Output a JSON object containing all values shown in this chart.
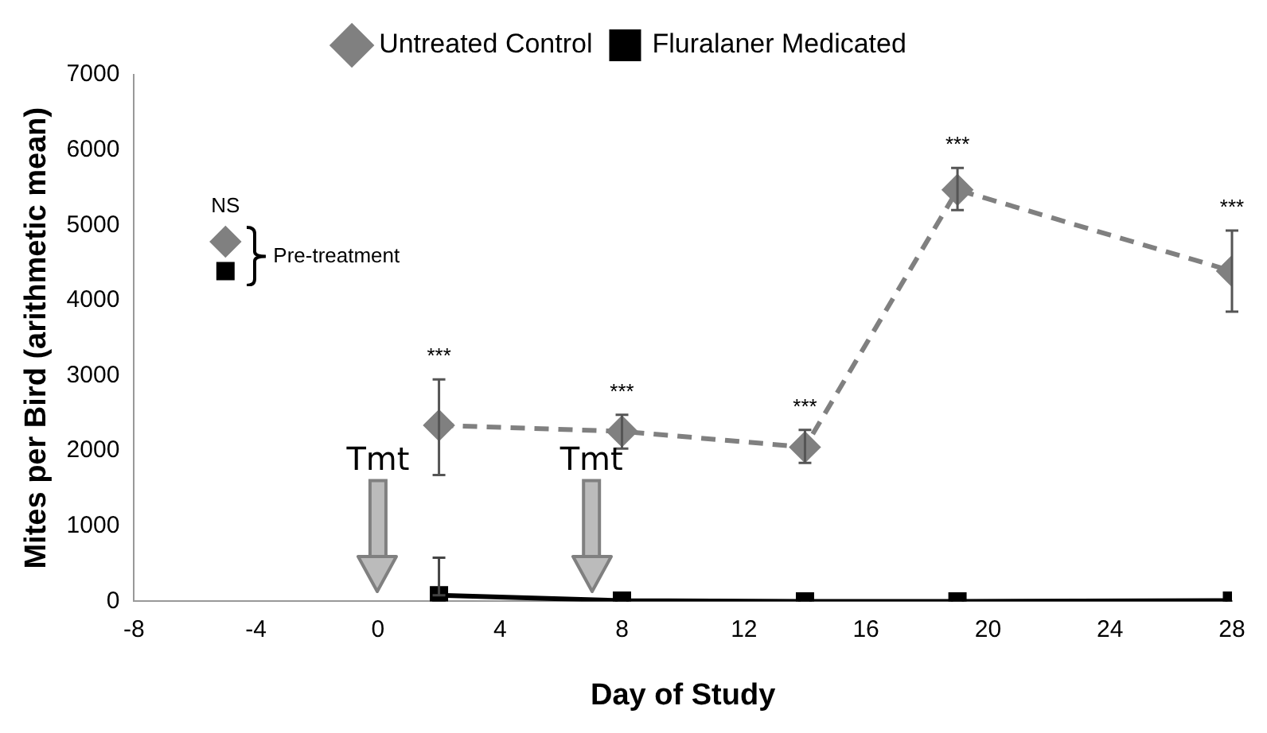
{
  "chart_data": {
    "type": "line",
    "xlabel": "Day of Study",
    "ylabel": "Mites per Bird (arithmetic mean)",
    "xlim": [
      -8,
      28
    ],
    "xticks": [
      -8,
      -4,
      0,
      4,
      8,
      12,
      16,
      20,
      24,
      28
    ],
    "ylim": [
      0,
      7000
    ],
    "yticks": [
      0,
      1000,
      2000,
      3000,
      4000,
      5000,
      6000,
      7000
    ],
    "grid": false,
    "legend": "top",
    "series": [
      {
        "name": "Untreated Control",
        "color": "#808080",
        "marker": "diamond",
        "line_style": "dashed",
        "x": [
          2,
          8,
          14,
          19,
          28
        ],
        "values": [
          2340,
          2260,
          2050,
          5470,
          4390
        ],
        "errors": [
          [
            1680,
            2950
          ],
          [
            2030,
            2480
          ],
          [
            1840,
            2280
          ],
          [
            5200,
            5760
          ],
          [
            3850,
            4930
          ]
        ]
      },
      {
        "name": "Fluralaner Medicated",
        "color": "#000000",
        "marker": "square",
        "line_style": "solid",
        "x": [
          2,
          8,
          14,
          19,
          28
        ],
        "values": [
          80,
          10,
          0,
          0,
          10
        ],
        "errors": [
          [
            80,
            580
          ],
          null,
          null,
          null,
          null
        ]
      },
      {
        "type": "scatter",
        "color": "#808080",
        "marker": "diamond",
        "x": [
          -5
        ],
        "values": [
          4780
        ]
      },
      {
        "type": "scatter",
        "color": "#000000",
        "marker": "square",
        "x": [
          -5
        ],
        "values": [
          4390
        ]
      }
    ],
    "ref_lines": [
      {
        "axis": "x",
        "value": 0,
        "label": "Tmt",
        "color": "#bbbbbb"
      },
      {
        "axis": "x",
        "value": 7,
        "label": "Tmt",
        "color": "#bbbbbb"
      }
    ],
    "annotations": [
      "NS",
      "Pre-treatment",
      {
        "text": "***",
        "x": 2,
        "y": 2340
      },
      {
        "text": "***",
        "x": 8,
        "y": 2260
      },
      {
        "text": "***",
        "x": 14,
        "y": 2050
      },
      {
        "text": "***",
        "x": 19,
        "y": 5470
      },
      {
        "text": "***",
        "x": 28,
        "y": 4390
      }
    ]
  }
}
